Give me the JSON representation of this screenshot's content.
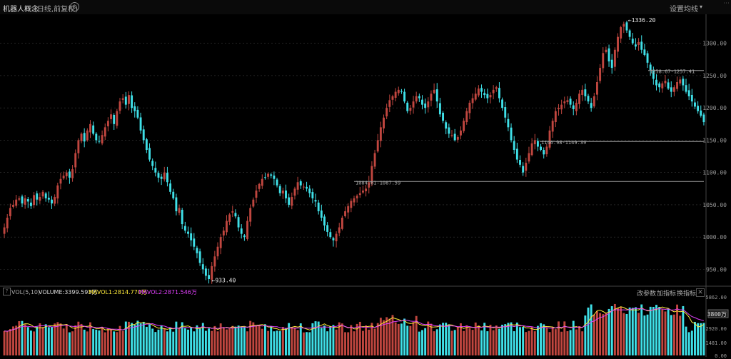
{
  "header": {
    "title": "机器人概念",
    "subtitle": "(日线,前复权)",
    "settings_label": "设置均线"
  },
  "volume_panel": {
    "indicator": "VOL(5,10)",
    "volume_label": "VOLUME:3399.593万",
    "ma1_label": "MAVOL1:2814.770万",
    "ma2_label": "MAVOL2:2871.546万",
    "buttons": [
      "改参数",
      "加指标",
      "换指标"
    ],
    "current_marker": "3800万"
  },
  "colors": {
    "up": "#c0463f",
    "down": "#3fe0e8",
    "ma1": "#ffeb3b",
    "ma2": "#e040fb",
    "grid": "#3a3a3a"
  },
  "chart_data": {
    "type": "candlestick",
    "price_axis": {
      "ticks": [
        950,
        1000,
        1050,
        1100,
        1150,
        1200,
        1250,
        1300
      ],
      "range": [
        925,
        1345
      ]
    },
    "volume_axis": {
      "ticks": [
        "5862.00",
        "3800万",
        "2920.00",
        "1481.00",
        "0.00"
      ],
      "range": [
        0,
        6200
      ]
    },
    "annotations": {
      "high": {
        "label": "1336.20",
        "value": 1336.2
      },
      "low": {
        "label": "933.40",
        "value": 933.4
      },
      "levels": [
        {
          "label": "1258.67-1257.41",
          "value": 1258.0
        },
        {
          "label": "1146.98-1149.39",
          "value": 1148.0
        },
        {
          "label": "1084.61-1087.59",
          "value": 1086.0
        }
      ]
    },
    "closes": [
      1015,
      1030,
      1045,
      1050,
      1058,
      1060,
      1052,
      1060,
      1055,
      1048,
      1065,
      1058,
      1062,
      1070,
      1060,
      1058,
      1052,
      1062,
      1080,
      1090,
      1095,
      1100,
      1092,
      1105,
      1130,
      1150,
      1160,
      1148,
      1165,
      1175,
      1160,
      1150,
      1148,
      1158,
      1170,
      1180,
      1190,
      1175,
      1195,
      1210,
      1215,
      1205,
      1220,
      1200,
      1195,
      1185,
      1165,
      1150,
      1135,
      1120,
      1110,
      1100,
      1092,
      1090,
      1100,
      1085,
      1070,
      1060,
      1040,
      1045,
      1020,
      1010,
      1005,
      995,
      985,
      975,
      960,
      950,
      940,
      935,
      955,
      970,
      985,
      1000,
      1010,
      1025,
      1035,
      1040,
      1032,
      1015,
      1005,
      1000,
      1025,
      1045,
      1058,
      1072,
      1082,
      1090,
      1092,
      1098,
      1095,
      1090,
      1080,
      1068,
      1072,
      1060,
      1050,
      1062,
      1075,
      1085,
      1080,
      1078,
      1075,
      1068,
      1060,
      1055,
      1040,
      1030,
      1018,
      1008,
      1000,
      995,
      1005,
      1015,
      1030,
      1040,
      1048,
      1056,
      1060,
      1064,
      1068,
      1072,
      1075,
      1085,
      1110,
      1130,
      1150,
      1170,
      1185,
      1200,
      1212,
      1218,
      1225,
      1228,
      1225,
      1210,
      1195,
      1200,
      1210,
      1218,
      1215,
      1205,
      1200,
      1210,
      1222,
      1228,
      1210,
      1190,
      1180,
      1168,
      1160,
      1158,
      1150,
      1155,
      1165,
      1180,
      1195,
      1208,
      1215,
      1222,
      1230,
      1225,
      1220,
      1215,
      1220,
      1228,
      1232,
      1215,
      1200,
      1185,
      1170,
      1150,
      1135,
      1120,
      1112,
      1100,
      1115,
      1130,
      1145,
      1150,
      1140,
      1135,
      1128,
      1140,
      1165,
      1180,
      1195,
      1200,
      1205,
      1210,
      1212,
      1205,
      1198,
      1208,
      1222,
      1228,
      1218,
      1210,
      1200,
      1218,
      1240,
      1262,
      1285,
      1290,
      1272,
      1262,
      1290,
      1310,
      1325,
      1330,
      1320,
      1310,
      1300,
      1295,
      1302,
      1290,
      1282,
      1270,
      1258,
      1245,
      1235,
      1232,
      1238,
      1242,
      1230,
      1225,
      1232,
      1240,
      1244,
      1235,
      1225,
      1218,
      1210,
      1202,
      1195,
      1188,
      1178
    ]
  }
}
